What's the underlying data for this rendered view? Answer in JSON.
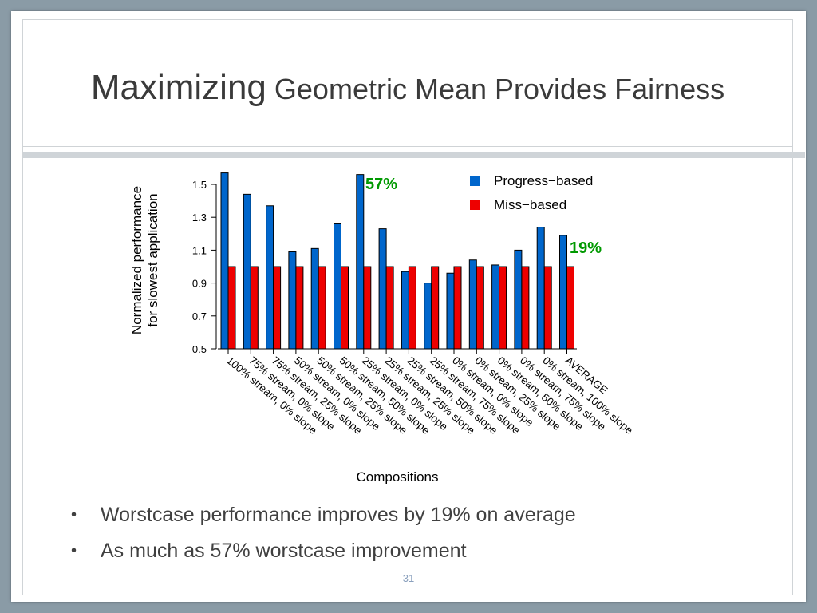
{
  "slide": {
    "title_part1": "Maximizing",
    "title_part2": " Geometric Mean Provides Fairness",
    "page_number": "31",
    "bullets": [
      "Worstcase performance improves by 19% on average",
      "As much as 57% worstcase improvement"
    ]
  },
  "chart_data": {
    "type": "bar",
    "ylabel": [
      "Normalized performance",
      "for slowest application"
    ],
    "xlabel": "Compositions",
    "ylim": [
      0.5,
      1.6
    ],
    "yticks": [
      0.5,
      0.7,
      0.9,
      1.1,
      1.3,
      1.5
    ],
    "categories": [
      "100% stream, 0% slope",
      "75% stream, 0% slope",
      "75% stream, 25% slope",
      "50% stream, 0% slope",
      "50% stream, 25% slope",
      "50% stream, 50% slope",
      "25% stream, 0% slope",
      "25% stream, 25% slope",
      "25% stream, 50% slope",
      "25% stream, 75% slope",
      "0% stream, 0% slope",
      "0% stream, 25% slope",
      "0% stream, 50% slope",
      "0% stream, 75% slope",
      "0% stream, 100% slope",
      "AVERAGE"
    ],
    "series": [
      {
        "name": "Progress−based",
        "color": "#0066cc",
        "values": [
          1.57,
          1.44,
          1.37,
          1.09,
          1.11,
          1.26,
          1.56,
          1.23,
          0.97,
          0.9,
          0.96,
          1.04,
          1.01,
          1.1,
          1.24,
          1.19
        ]
      },
      {
        "name": "Miss−based",
        "color": "#ee0000",
        "values": [
          1.0,
          1.0,
          1.0,
          1.0,
          1.0,
          1.0,
          1.0,
          1.0,
          1.0,
          1.0,
          1.0,
          1.0,
          1.0,
          1.0,
          1.0,
          1.0
        ]
      }
    ],
    "legend_position": "top-right",
    "annotations": [
      {
        "text": "57%",
        "color": "#009900"
      },
      {
        "text": "19%",
        "color": "#009900"
      }
    ]
  }
}
